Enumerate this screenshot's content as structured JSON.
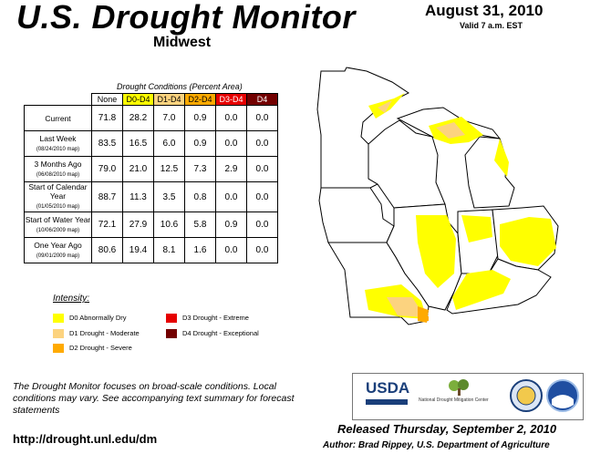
{
  "header": {
    "title": "U.S. Drought Monitor",
    "region": "Midwest",
    "date": "August 31, 2010",
    "valid": "Valid 7 a.m. EST"
  },
  "table": {
    "caption": "Drought Conditions (Percent Area)",
    "columns": [
      "None",
      "D0-D4",
      "D1-D4",
      "D2-D4",
      "D3-D4",
      "D4"
    ],
    "column_colors": [
      "#ffffff",
      "#ffff00",
      "#fcd37f",
      "#ffaa00",
      "#e60000",
      "#730000"
    ],
    "rows": [
      {
        "label": "Current",
        "sublabel": "",
        "values": [
          "71.8",
          "28.2",
          "7.0",
          "0.9",
          "0.0",
          "0.0"
        ]
      },
      {
        "label": "Last Week",
        "sublabel": "(08/24/2010 map)",
        "values": [
          "83.5",
          "16.5",
          "6.0",
          "0.9",
          "0.0",
          "0.0"
        ]
      },
      {
        "label": "3 Months Ago",
        "sublabel": "(06/08/2010 map)",
        "values": [
          "79.0",
          "21.0",
          "12.5",
          "7.3",
          "2.9",
          "0.0"
        ]
      },
      {
        "label": "Start of Calendar Year",
        "sublabel": "(01/05/2010 map)",
        "values": [
          "88.7",
          "11.3",
          "3.5",
          "0.8",
          "0.0",
          "0.0"
        ]
      },
      {
        "label": "Start of Water Year",
        "sublabel": "(10/06/2009 map)",
        "values": [
          "72.1",
          "27.9",
          "10.6",
          "5.8",
          "0.9",
          "0.0"
        ]
      },
      {
        "label": "One Year Ago",
        "sublabel": "(09/01/2009 map)",
        "values": [
          "80.6",
          "19.4",
          "8.1",
          "1.6",
          "0.0",
          "0.0"
        ]
      }
    ]
  },
  "legend": {
    "title": "Intensity:",
    "items": [
      {
        "label": "D0 Abnormally Dry",
        "color": "#ffff00"
      },
      {
        "label": "D1 Drought - Moderate",
        "color": "#fcd37f"
      },
      {
        "label": "D2 Drought - Severe",
        "color": "#ffaa00"
      },
      {
        "label": "D3 Drought - Extreme",
        "color": "#e60000"
      },
      {
        "label": "D4 Drought - Exceptional",
        "color": "#730000"
      }
    ]
  },
  "footer": {
    "note": "The Drought Monitor focuses on broad-scale conditions. Local conditions may vary. See accompanying text summary for forecast statements",
    "url": "http://drought.unl.edu/dm",
    "released": "Released Thursday, September 2, 2010",
    "author": "Author: Brad Rippey, U.S. Department of Agriculture"
  },
  "logos": {
    "usda": "USDA",
    "ndmc": "National Drought Mitigation Center"
  }
}
